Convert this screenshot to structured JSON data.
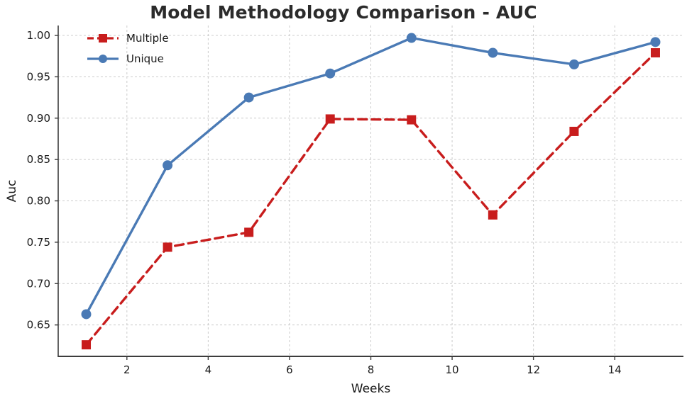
{
  "title": "Model Methodology Comparison - AUC",
  "chart_data": {
    "type": "line",
    "title": "Model Methodology Comparison - AUC",
    "xlabel": "Weeks",
    "ylabel": "Auc",
    "x": [
      1,
      3,
      5,
      7,
      9,
      11,
      13,
      15
    ],
    "series": [
      {
        "name": "Multiple",
        "color": "#c81d1d",
        "line_style": "dashed",
        "marker": "square",
        "values": [
          0.626,
          0.744,
          0.762,
          0.899,
          0.898,
          0.783,
          0.884,
          0.979
        ]
      },
      {
        "name": "Unique",
        "color": "#4a7ab5",
        "line_style": "solid",
        "marker": "circle",
        "values": [
          0.663,
          0.843,
          0.925,
          0.954,
          0.997,
          0.979,
          0.965,
          0.992
        ]
      }
    ],
    "xticks": [
      2,
      4,
      6,
      8,
      10,
      12,
      14
    ],
    "yticks": [
      0.65,
      0.7,
      0.75,
      0.8,
      0.85,
      0.9,
      0.95,
      1.0
    ],
    "xlim": [
      0.31,
      15.69
    ],
    "ylim": [
      0.612,
      1.012
    ],
    "grid": true,
    "grid_style": "dashed",
    "legend_position": "upper left"
  },
  "legend": {
    "items": [
      {
        "label": "Multiple"
      },
      {
        "label": "Unique"
      }
    ]
  },
  "colors": {
    "multiple_red": "#c81d1d",
    "unique_blue": "#4a7ab5",
    "grid": "#cccccc",
    "spine": "#3c3c3c",
    "text": "#1a1a1a",
    "title": "#2b2b2b",
    "background": "#ffffff"
  }
}
